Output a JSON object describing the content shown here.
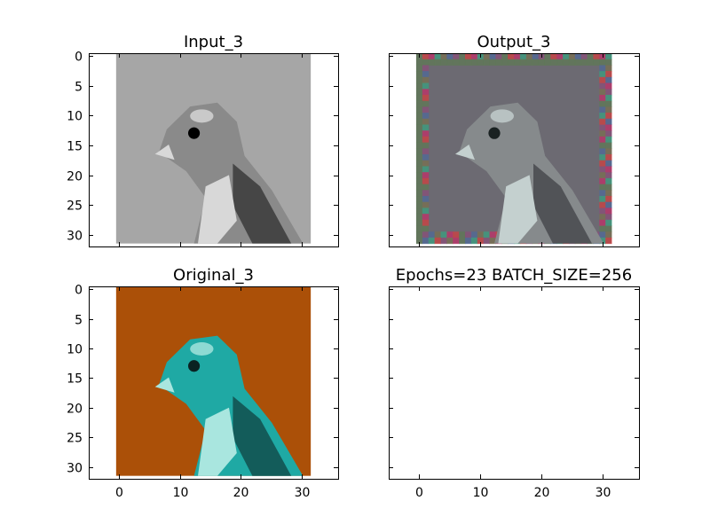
{
  "figure": {
    "background": "#ffffff"
  },
  "chart_data": [
    {
      "type": "image",
      "title": "Input_3",
      "xlim": [
        -5,
        36
      ],
      "ylim": [
        32,
        -0.5
      ],
      "xticks": [
        0,
        10,
        20,
        30
      ],
      "yticks": [
        0,
        5,
        10,
        15,
        20,
        25,
        30
      ],
      "show_xtick_labels": false,
      "show_ytick_labels": true,
      "image": {
        "style": "grayscale",
        "extent": [
          -0.5,
          31.5,
          31.5,
          -0.5
        ],
        "background": "#a6a6a6",
        "subject": "#8a8a8a",
        "highlight": "#d8d8d8",
        "shadow": "#2a2a2a",
        "eye": "#000000"
      }
    },
    {
      "type": "image",
      "title": "Output_3",
      "xlim": [
        -5,
        36
      ],
      "ylim": [
        32,
        -0.5
      ],
      "xticks": [
        0,
        10,
        20,
        30
      ],
      "yticks": [
        0,
        5,
        10,
        15,
        20,
        25,
        30
      ],
      "show_xtick_labels": false,
      "show_ytick_labels": false,
      "image": {
        "style": "noisy-color",
        "extent": [
          -0.5,
          31.5,
          31.5,
          -0.5
        ],
        "background": "#6c6a72",
        "subject": "#868a8c",
        "highlight": "#c4d0cf",
        "shadow": "#3a3c40",
        "eye": "#1a2222",
        "border_noise": [
          "#5f7a55",
          "#8a4f7a",
          "#4f6a9a",
          "#7a7050",
          "#3aa080",
          "#c0306a",
          "#d04040"
        ]
      }
    },
    {
      "type": "image",
      "title": "Original_3",
      "xlim": [
        -5,
        36
      ],
      "ylim": [
        32,
        -0.5
      ],
      "xticks": [
        0,
        10,
        20,
        30
      ],
      "yticks": [
        0,
        5,
        10,
        15,
        20,
        25,
        30
      ],
      "show_xtick_labels": true,
      "show_ytick_labels": true,
      "image": {
        "style": "color",
        "extent": [
          -0.5,
          31.5,
          31.5,
          -0.5
        ],
        "background": "#ab5008",
        "subject": "#1fa9a4",
        "highlight": "#a9e6df",
        "shadow": "#0e3c3a",
        "eye": "#0a2222"
      }
    },
    {
      "type": "empty",
      "title": "Epochs=23 BATCH_SIZE=256",
      "xlim": [
        -5,
        36
      ],
      "ylim": [
        32,
        -0.5
      ],
      "xticks": [
        0,
        10,
        20,
        30
      ],
      "yticks": [
        0,
        5,
        10,
        15,
        20,
        25,
        30
      ],
      "show_xtick_labels": true,
      "show_ytick_labels": false
    }
  ]
}
